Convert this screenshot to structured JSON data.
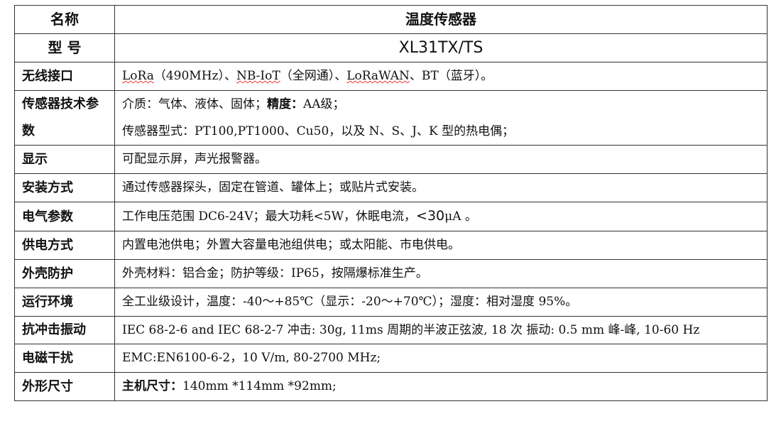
{
  "header": {
    "name_label": "名称",
    "name_value": "温度传感器",
    "model_label": "型 号",
    "model_value": "XL31TX/TS"
  },
  "rows": [
    {
      "label": "无线接口",
      "parts": [
        "LoRa",
        "（490MHz）、",
        "NB-IoT",
        "（全网通）、",
        "LoRaWAN",
        "、BT（蓝牙）。"
      ]
    },
    {
      "label": "传感器技术参数",
      "line1_a": "介质：气体、液体、固体；",
      "line1_b": "精度：",
      "line1_c": "AA级；",
      "line2": "传感器型式：PT100,PT1000、Cu50，以及 N、S、J、K 型的热电偶；"
    },
    {
      "label": "显示",
      "value": "可配显示屏，声光报警器。"
    },
    {
      "label": "安装方式",
      "value": "通过传感器探头，固定在管道、罐体上；或贴片式安装。"
    },
    {
      "label": "电气参数",
      "value_a": "工作电压范围 DC6-24V；最大功耗<5W，休眠电流，",
      "value_b": "<30",
      "value_c": "μA 。"
    },
    {
      "label": "供电方式",
      "value": "内置电池供电；外置大容量电池组供电；或太阳能、市电供电。"
    },
    {
      "label": "外壳防护",
      "value": "外壳材料：铝合金；防护等级：IP65，按隔爆标准生产。"
    },
    {
      "label": "运行环境",
      "value": "全工业级设计，温度：-40～+85℃（显示：-20～+70℃）；湿度：相对湿度 95%。"
    },
    {
      "label": "抗冲击振动",
      "value": "IEC 68-2-6 and IEC 68-2-7 冲击: 30g, 11ms 周期的半波正弦波, 18 次 振动: 0.5 mm 峰-峰, 10-60 Hz"
    },
    {
      "label": "电磁干扰",
      "value": "EMC:EN6100-6-2，10 V/m, 80-2700 MHz;"
    },
    {
      "label": "外形尺寸",
      "value_a": "主机尺寸：",
      "value_b": "140mm *114mm *92mm;"
    }
  ]
}
